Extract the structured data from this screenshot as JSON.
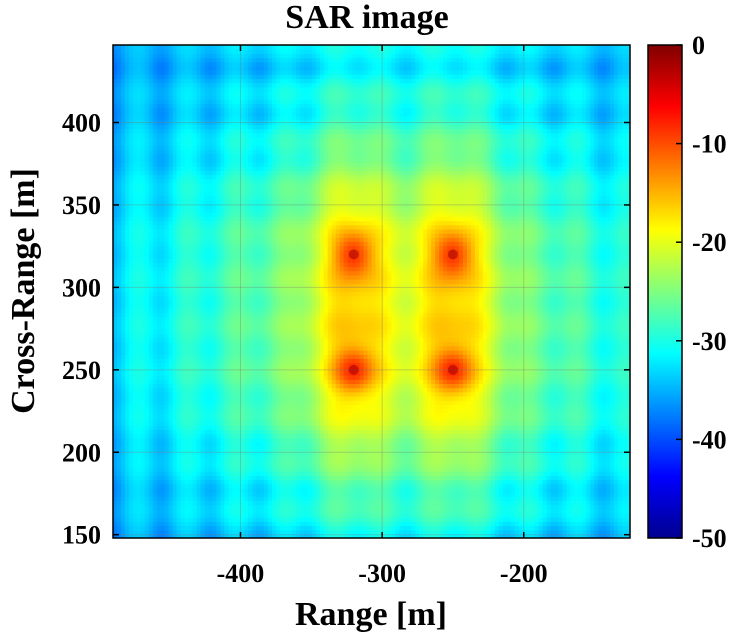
{
  "chart_data": {
    "type": "heatmap",
    "title": "SAR image",
    "xlabel": "Range [m]",
    "ylabel": "Cross-Range [m]",
    "xlim": [
      -490,
      -125
    ],
    "ylim": [
      148,
      447
    ],
    "x_ticks": [
      -400,
      -300,
      -200
    ],
    "y_ticks": [
      150,
      200,
      250,
      300,
      350,
      400
    ],
    "colorbar": {
      "colormap": "jet",
      "range": [
        -50,
        0
      ],
      "ticks": [
        0,
        -10,
        -20,
        -30,
        -40,
        -50
      ]
    },
    "grid": true,
    "targets": [
      {
        "x": -320,
        "y": 320
      },
      {
        "x": -250,
        "y": 320
      },
      {
        "x": -320,
        "y": 250
      },
      {
        "x": -250,
        "y": 250
      }
    ],
    "peak_level_db": -8,
    "background_level_db": -40
  }
}
